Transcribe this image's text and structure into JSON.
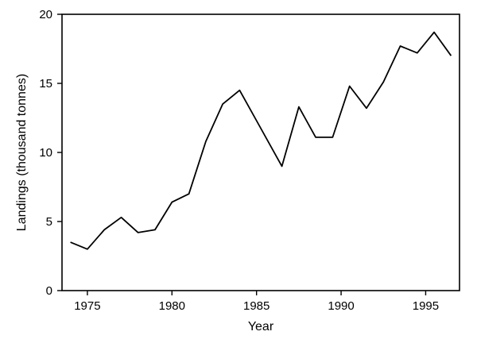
{
  "chart_data": {
    "type": "line",
    "title": "",
    "xlabel": "Year",
    "ylabel": "Landings (thousand tonnes)",
    "xlim": [
      1973.5,
      1997
    ],
    "ylim": [
      0,
      20
    ],
    "x_ticks": [
      1975,
      1980,
      1985,
      1990,
      1995
    ],
    "y_ticks": [
      0,
      5,
      10,
      15,
      20
    ],
    "grid": false,
    "series": [
      {
        "x": [
          1974,
          1975,
          1976,
          1977,
          1978,
          1979,
          1980,
          1981,
          1982,
          1983,
          1984,
          1985,
          1986.5,
          1987.5,
          1988.5,
          1989.5,
          1990.5,
          1991.5,
          1992.5,
          1993.5,
          1994.5,
          1995.5,
          1996.5
        ],
        "y": [
          3.5,
          3.0,
          4.4,
          5.3,
          4.2,
          4.4,
          6.4,
          7.0,
          10.8,
          13.5,
          14.5,
          12.3,
          9.0,
          13.3,
          11.1,
          11.1,
          14.8,
          13.2,
          15.1,
          17.7,
          17.2,
          18.7,
          17.0
        ]
      }
    ]
  }
}
